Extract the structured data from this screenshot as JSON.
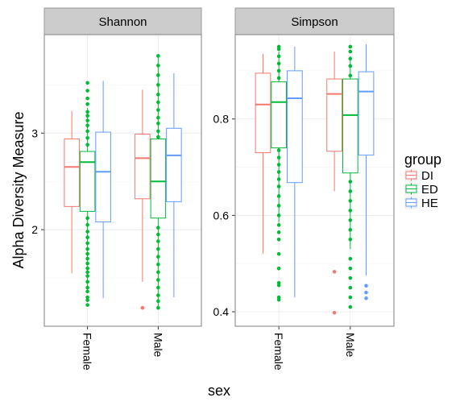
{
  "chart_data": {
    "type": "boxplot",
    "xlabel": "sex",
    "ylabel": "Alpha Diversity Measure",
    "categories": [
      "Female",
      "Male"
    ],
    "legend": {
      "title": "group",
      "position": "right",
      "entries": [
        {
          "name": "DI",
          "color": "#F8766D"
        },
        {
          "name": "ED",
          "color": "#00BA38"
        },
        {
          "name": "HE",
          "color": "#619CFF"
        }
      ]
    },
    "panels": [
      {
        "title": "Shannon",
        "ylim": [
          1.0,
          4.02
        ],
        "yticks": [
          {
            "value": 2,
            "label": "2"
          },
          {
            "value": 3,
            "label": "3"
          }
        ],
        "boxes": [
          {
            "category": "Female",
            "group": "DI",
            "whisker_low": 1.55,
            "q1": 2.24,
            "median": 2.65,
            "q3": 2.94,
            "whisker_high": 3.23,
            "outliers": []
          },
          {
            "category": "Female",
            "group": "ED",
            "whisker_low": 1.35,
            "q1": 2.19,
            "median": 2.7,
            "q3": 2.81,
            "whisker_high": 3.26,
            "outliers": [
              1.22,
              1.27,
              1.3,
              1.36,
              1.4,
              1.46,
              1.52,
              1.56,
              1.6,
              1.65,
              1.7,
              1.75,
              1.8,
              1.86,
              1.92,
              1.98,
              2.05,
              2.12,
              2.88,
              2.95,
              3.02,
              3.08,
              3.13,
              3.18,
              3.22,
              3.3,
              3.36,
              3.44,
              3.52
            ]
          },
          {
            "category": "Female",
            "group": "HE",
            "whisker_low": 1.29,
            "q1": 2.08,
            "median": 2.6,
            "q3": 3.01,
            "whisker_high": 3.54,
            "outliers": []
          },
          {
            "category": "Male",
            "group": "DI",
            "whisker_low": 1.46,
            "q1": 2.32,
            "median": 2.74,
            "q3": 2.99,
            "whisker_high": 3.45,
            "outliers": [
              1.19
            ]
          },
          {
            "category": "Male",
            "group": "ED",
            "whisker_low": 1.2,
            "q1": 2.12,
            "median": 2.5,
            "q3": 2.94,
            "whisker_high": 3.82,
            "outliers": [
              1.19,
              1.26,
              1.32,
              1.4,
              1.48,
              1.56,
              1.64,
              1.72,
              1.8,
              1.88,
              1.95,
              2.02,
              2.96,
              3.02,
              3.1,
              3.16,
              3.24,
              3.32,
              3.4,
              3.5,
              3.6,
              3.7,
              3.8
            ]
          },
          {
            "category": "Male",
            "group": "HE",
            "whisker_low": 1.3,
            "q1": 2.29,
            "median": 2.77,
            "q3": 3.05,
            "whisker_high": 3.62,
            "outliers": []
          }
        ]
      },
      {
        "title": "Simpson",
        "ylim": [
          0.37,
          0.975
        ],
        "yticks": [
          {
            "value": 0.4,
            "label": "0.4"
          },
          {
            "value": 0.6,
            "label": "0.6"
          },
          {
            "value": 0.8,
            "label": "0.8"
          }
        ],
        "boxes": [
          {
            "category": "Female",
            "group": "DI",
            "whisker_low": 0.52,
            "q1": 0.73,
            "median": 0.83,
            "q3": 0.895,
            "whisker_high": 0.935,
            "outliers": []
          },
          {
            "category": "Female",
            "group": "ED",
            "whisker_low": 0.585,
            "q1": 0.74,
            "median": 0.835,
            "q3": 0.877,
            "whisker_high": 0.94,
            "outliers": [
              0.425,
              0.43,
              0.455,
              0.46,
              0.49,
              0.52,
              0.55,
              0.565,
              0.58,
              0.6,
              0.62,
              0.64,
              0.66,
              0.675,
              0.69,
              0.705,
              0.72,
              0.735,
              0.885,
              0.9,
              0.915,
              0.93,
              0.945,
              0.95
            ]
          },
          {
            "category": "Female",
            "group": "HE",
            "whisker_low": 0.43,
            "q1": 0.668,
            "median": 0.843,
            "q3": 0.9,
            "whisker_high": 0.95,
            "outliers": []
          },
          {
            "category": "Male",
            "group": "DI",
            "whisker_low": 0.65,
            "q1": 0.733,
            "median": 0.852,
            "q3": 0.883,
            "whisker_high": 0.94,
            "outliers": [
              0.483,
              0.398
            ]
          },
          {
            "category": "Male",
            "group": "ED",
            "whisker_low": 0.53,
            "q1": 0.688,
            "median": 0.808,
            "q3": 0.883,
            "whisker_high": 0.93,
            "outliers": [
              0.41,
              0.43,
              0.45,
              0.47,
              0.49,
              0.51,
              0.55,
              0.57,
              0.59,
              0.61,
              0.63,
              0.65,
              0.67,
              0.89,
              0.91,
              0.925,
              0.94,
              0.95
            ]
          },
          {
            "category": "Male",
            "group": "HE",
            "whisker_low": 0.475,
            "q1": 0.725,
            "median": 0.857,
            "q3": 0.898,
            "whisker_high": 0.955,
            "outliers": [
              0.454,
              0.44,
              0.428
            ]
          }
        ]
      }
    ]
  }
}
